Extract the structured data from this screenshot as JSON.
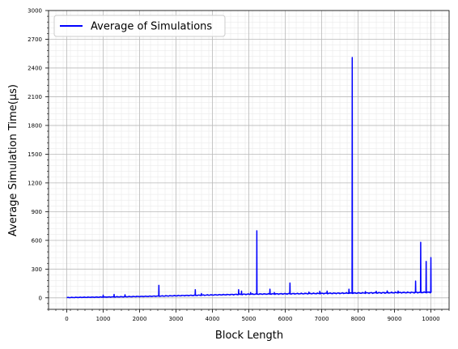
{
  "chart_data": {
    "type": "line",
    "title": "",
    "xlabel": "Block Length",
    "ylabel": "Average Simulation Time(µs)",
    "xlim": [
      -500,
      10500
    ],
    "ylim": [
      -120,
      3000
    ],
    "xticks": [
      0,
      1000,
      2000,
      3000,
      4000,
      5000,
      6000,
      7000,
      8000,
      9000,
      10000
    ],
    "yticks": [
      0,
      300,
      600,
      900,
      1200,
      1500,
      1800,
      2100,
      2400,
      2700,
      3000
    ],
    "grid": true,
    "minor_grid": true,
    "legend_position": "top-left",
    "series": [
      {
        "name": "Average of Simulations",
        "color": "#0000ff",
        "baseline": [
          [
            0,
            3
          ],
          [
            1000,
            8
          ],
          [
            2000,
            14
          ],
          [
            3000,
            22
          ],
          [
            4000,
            30
          ],
          [
            5000,
            38
          ],
          [
            6000,
            42
          ],
          [
            7000,
            46
          ],
          [
            8000,
            50
          ],
          [
            9000,
            54
          ],
          [
            10000,
            58
          ]
        ],
        "spikes": [
          [
            1000,
            28
          ],
          [
            1300,
            35
          ],
          [
            1600,
            32
          ],
          [
            2530,
            130
          ],
          [
            3530,
            85
          ],
          [
            3700,
            45
          ],
          [
            4720,
            85
          ],
          [
            4800,
            70
          ],
          [
            5050,
            55
          ],
          [
            5220,
            700
          ],
          [
            5580,
            90
          ],
          [
            5700,
            55
          ],
          [
            6130,
            155
          ],
          [
            6650,
            60
          ],
          [
            6950,
            68
          ],
          [
            7150,
            70
          ],
          [
            7750,
            90
          ],
          [
            7840,
            2510
          ],
          [
            8200,
            65
          ],
          [
            8500,
            68
          ],
          [
            8800,
            72
          ],
          [
            9100,
            70
          ],
          [
            9580,
            175
          ],
          [
            9720,
            580
          ],
          [
            9870,
            380
          ],
          [
            10000,
            420
          ]
        ]
      }
    ]
  }
}
